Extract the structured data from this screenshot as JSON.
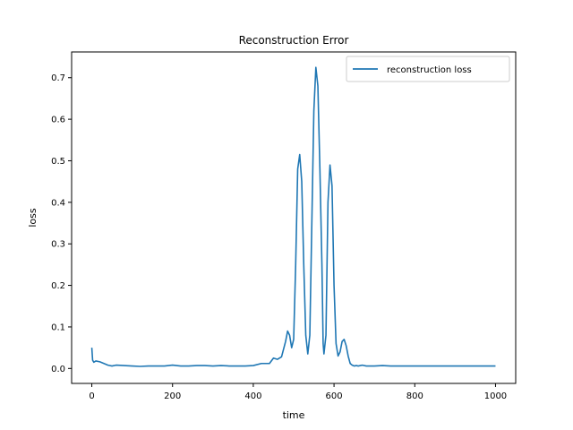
{
  "chart_data": {
    "type": "line",
    "title": "Reconstruction Error",
    "xlabel": "time",
    "ylabel": "loss",
    "xlim": [
      -50,
      1050
    ],
    "ylim": [
      -0.036,
      0.762
    ],
    "xticks": [
      0,
      200,
      400,
      600,
      800,
      1000
    ],
    "yticks": [
      0.0,
      0.1,
      0.2,
      0.3,
      0.4,
      0.5,
      0.6,
      0.7
    ],
    "xtick_labels": [
      "0",
      "200",
      "400",
      "600",
      "800",
      "1000"
    ],
    "ytick_labels": [
      "0.0",
      "0.1",
      "0.2",
      "0.3",
      "0.4",
      "0.5",
      "0.6",
      "0.7"
    ],
    "grid": false,
    "legend_position": "top-right",
    "series": [
      {
        "name": "reconstruction loss",
        "color": "#1f77b4",
        "x": [
          0,
          2,
          5,
          10,
          20,
          30,
          40,
          50,
          60,
          80,
          100,
          120,
          140,
          160,
          180,
          200,
          220,
          240,
          260,
          280,
          300,
          320,
          340,
          360,
          380,
          400,
          420,
          430,
          440,
          450,
          460,
          470,
          480,
          485,
          490,
          495,
          500,
          505,
          510,
          515,
          520,
          525,
          530,
          535,
          540,
          545,
          550,
          555,
          560,
          565,
          570,
          573,
          575,
          580,
          585,
          590,
          595,
          600,
          605,
          610,
          615,
          620,
          625,
          630,
          635,
          640,
          645,
          650,
          655,
          660,
          665,
          670,
          680,
          690,
          700,
          720,
          740,
          760,
          780,
          800,
          820,
          840,
          860,
          880,
          900,
          920,
          940,
          960,
          980,
          1000
        ],
        "y": [
          0.05,
          0.02,
          0.015,
          0.018,
          0.016,
          0.012,
          0.008,
          0.006,
          0.008,
          0.007,
          0.006,
          0.005,
          0.006,
          0.006,
          0.006,
          0.008,
          0.006,
          0.006,
          0.007,
          0.007,
          0.006,
          0.007,
          0.006,
          0.006,
          0.006,
          0.007,
          0.012,
          0.012,
          0.012,
          0.025,
          0.022,
          0.028,
          0.065,
          0.09,
          0.08,
          0.05,
          0.07,
          0.25,
          0.48,
          0.515,
          0.45,
          0.25,
          0.08,
          0.035,
          0.08,
          0.35,
          0.62,
          0.725,
          0.68,
          0.48,
          0.25,
          0.06,
          0.035,
          0.08,
          0.4,
          0.49,
          0.44,
          0.2,
          0.06,
          0.03,
          0.04,
          0.065,
          0.07,
          0.055,
          0.03,
          0.012,
          0.008,
          0.006,
          0.007,
          0.006,
          0.007,
          0.008,
          0.006,
          0.006,
          0.006,
          0.007,
          0.006,
          0.006,
          0.006,
          0.006,
          0.006,
          0.006,
          0.006,
          0.006,
          0.006,
          0.006,
          0.006,
          0.006,
          0.006,
          0.006
        ]
      }
    ]
  }
}
